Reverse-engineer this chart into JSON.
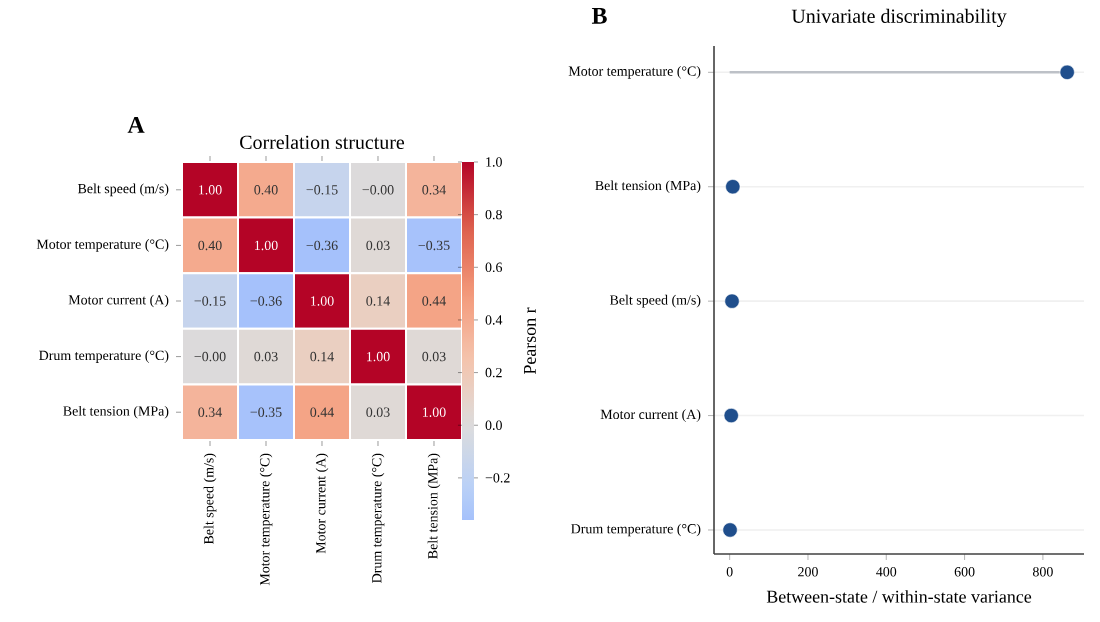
{
  "chart_data": [
    {
      "type": "heatmap",
      "title": "Correlation structure",
      "annotations": [
        "A"
      ],
      "categories": [
        "Belt speed (m/s)",
        "Motor temperature (°C)",
        "Motor current (A)",
        "Drum temperature (°C)",
        "Belt tension (MPa)"
      ],
      "y_categories": [
        "Belt speed (m/s)",
        "Motor temperature (°C)",
        "Motor current (A)",
        "Drum temperature (°C)",
        "Belt tension (MPa)"
      ],
      "cells": [
        [
          1.0,
          0.4,
          -0.15,
          -0.0,
          0.34
        ],
        [
          0.4,
          1.0,
          -0.36,
          0.03,
          -0.35
        ],
        [
          -0.15,
          -0.36,
          1.0,
          0.14,
          0.44
        ],
        [
          -0.0,
          0.03,
          0.14,
          1.0,
          0.03
        ],
        [
          0.34,
          -0.35,
          0.44,
          0.03,
          1.0
        ]
      ],
      "cell_labels": [
        [
          "1.00",
          "0.40",
          "−0.15",
          "−0.00",
          "0.34"
        ],
        [
          "0.40",
          "1.00",
          "−0.36",
          "0.03",
          "−0.35"
        ],
        [
          "−0.15",
          "−0.36",
          "1.00",
          "0.14",
          "0.44"
        ],
        [
          "−0.00",
          "0.03",
          "0.14",
          "1.00",
          "0.03"
        ],
        [
          "0.34",
          "−0.35",
          "0.44",
          "0.03",
          "1.00"
        ]
      ],
      "data_labels": true,
      "clabel": "Pearson r",
      "clim": [
        -0.36,
        1.0
      ],
      "cticks": [
        {
          "value": -0.2,
          "label": "−0.2"
        },
        {
          "value": 0,
          "label": "0.0"
        },
        {
          "value": 0.2,
          "label": "0.2"
        },
        {
          "value": 0.4,
          "label": "0.4"
        },
        {
          "value": 0.6,
          "label": "0.6"
        },
        {
          "value": 0.8,
          "label": "0.8"
        },
        {
          "value": 1,
          "label": "1.0"
        }
      ]
    },
    {
      "type": "lollipop",
      "orientation": "horizontal",
      "title": "Univariate discriminability",
      "annotations": [
        "B"
      ],
      "xlabel": "Between-state / within-state variance",
      "categories": [
        "Motor temperature (°C)",
        "Belt tension (MPa)",
        "Belt speed (m/s)",
        "Motor current (A)",
        "Drum temperature (°C)"
      ],
      "values": [
        862,
        8,
        6,
        4,
        1
      ],
      "color": "#1f4e8c",
      "grid": "y",
      "xlim": [
        -40,
        905
      ],
      "xticks": [
        0,
        200,
        400,
        600,
        800
      ]
    }
  ]
}
